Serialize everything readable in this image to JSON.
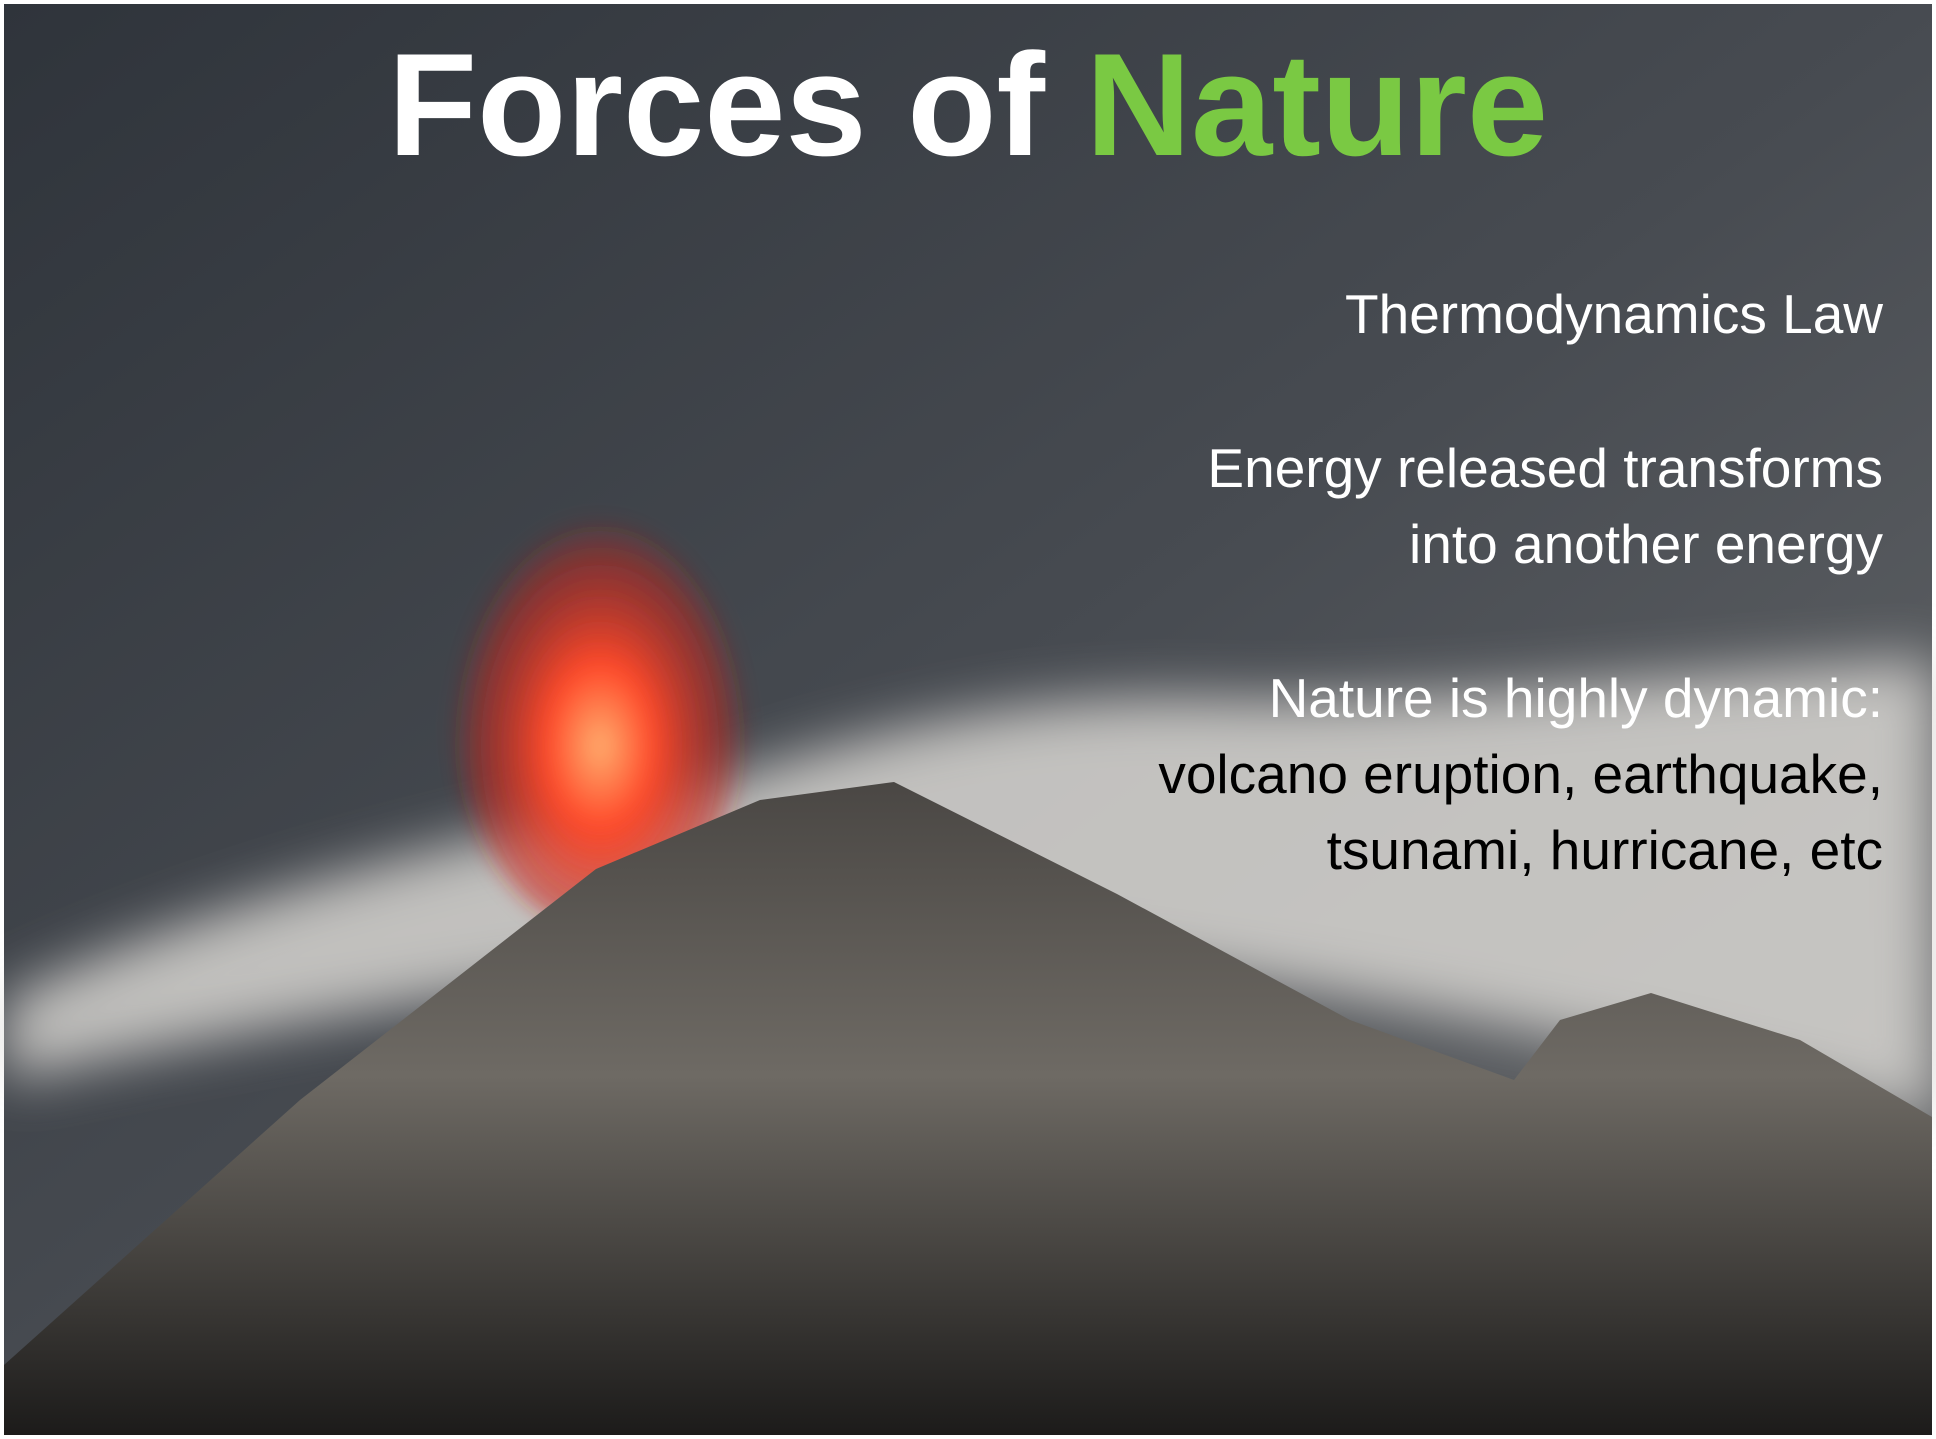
{
  "slide": {
    "title": {
      "lead": "Forces of",
      "accent": "Nature"
    },
    "body": [
      {
        "lines": [
          "Thermodynamics Law"
        ]
      },
      {
        "lines": [
          "Energy released transforms",
          "into another energy"
        ]
      },
      {
        "lines": [
          "Nature is highly dynamic:",
          "volcano eruption, earthquake,",
          "tsunami, hurricane, etc"
        ]
      }
    ]
  }
}
